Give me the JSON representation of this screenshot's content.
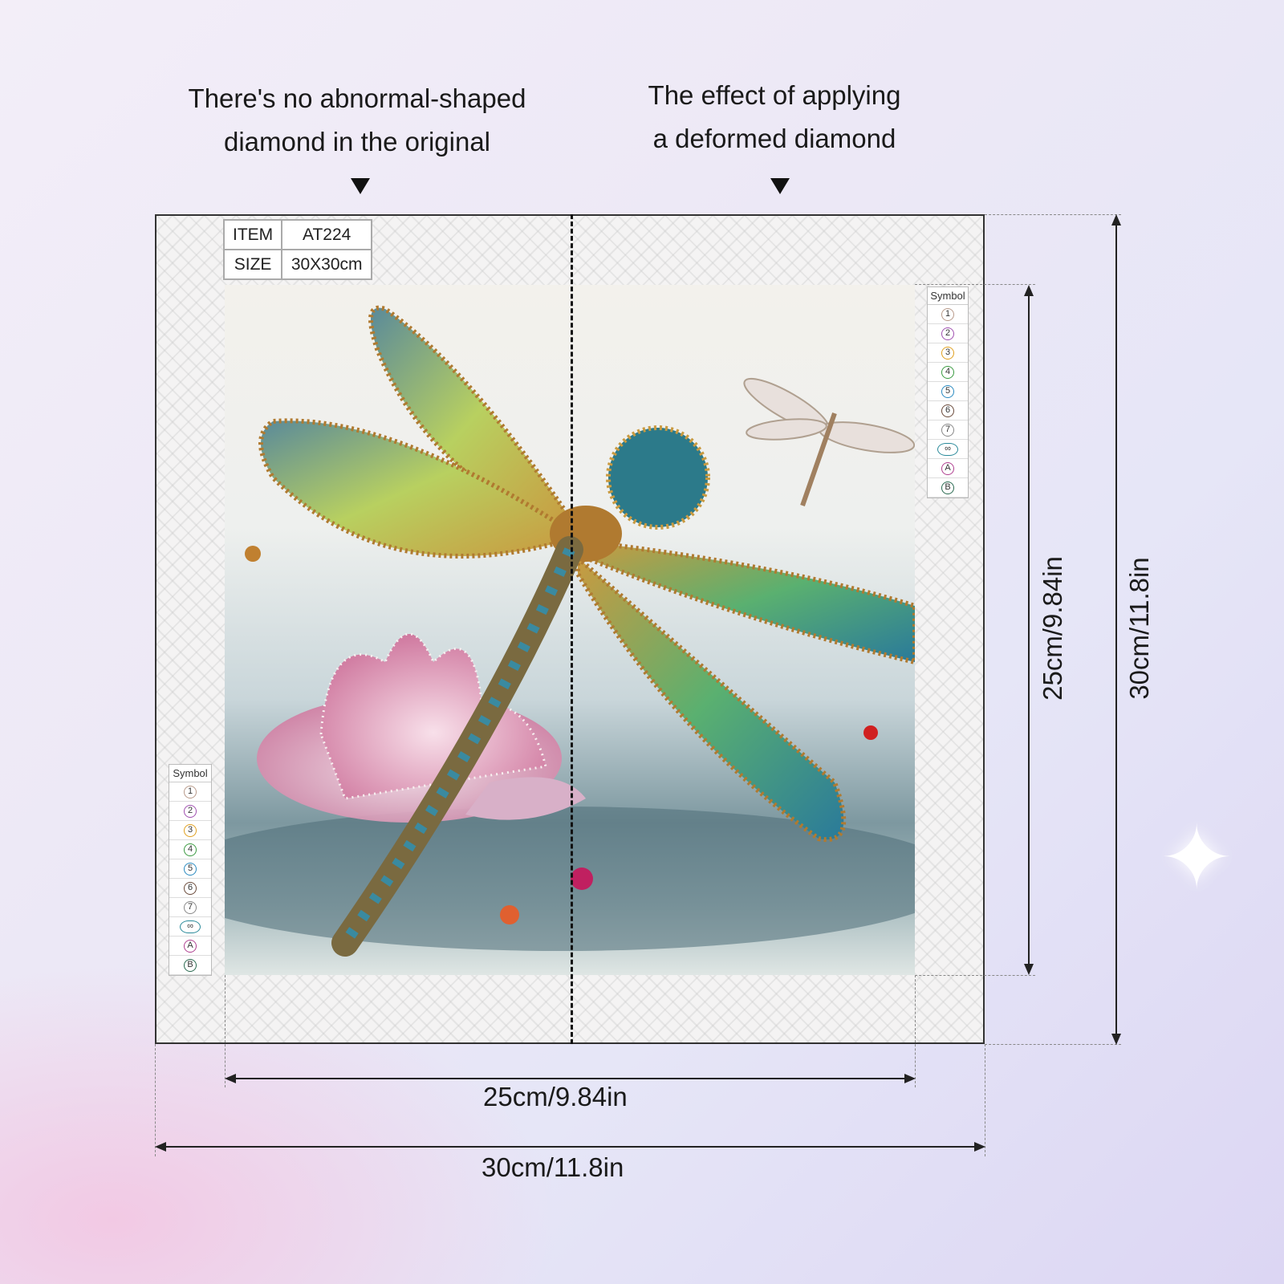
{
  "headings": {
    "left": [
      "There's no abnormal-shaped",
      "diamond in the original"
    ],
    "right": [
      "The effect of applying",
      "a deformed diamond"
    ]
  },
  "item_table": {
    "rows": [
      {
        "label": "ITEM",
        "value": "AT224"
      },
      {
        "label": "SIZE",
        "value": "30X30cm"
      }
    ]
  },
  "symbol_legend": {
    "title": "Symbol",
    "symbols": [
      {
        "glyph": "1",
        "color": "#b89a8a"
      },
      {
        "glyph": "2",
        "color": "#a050b0"
      },
      {
        "glyph": "3",
        "color": "#e0a020"
      },
      {
        "glyph": "4",
        "color": "#3a9a40"
      },
      {
        "glyph": "5",
        "color": "#2a8ac0"
      },
      {
        "glyph": "6",
        "color": "#6a4a3a"
      },
      {
        "glyph": "7",
        "color": "#888888"
      },
      {
        "glyph": "∞",
        "color": "#2a8a9a"
      },
      {
        "glyph": "A",
        "color": "#b04090"
      },
      {
        "glyph": "B",
        "color": "#2a6a50"
      }
    ]
  },
  "dimensions": {
    "inner_width": "25cm/9.84in",
    "outer_width": "30cm/11.8in",
    "inner_height": "25cm/9.84in",
    "outer_height": "30cm/11.8in"
  }
}
